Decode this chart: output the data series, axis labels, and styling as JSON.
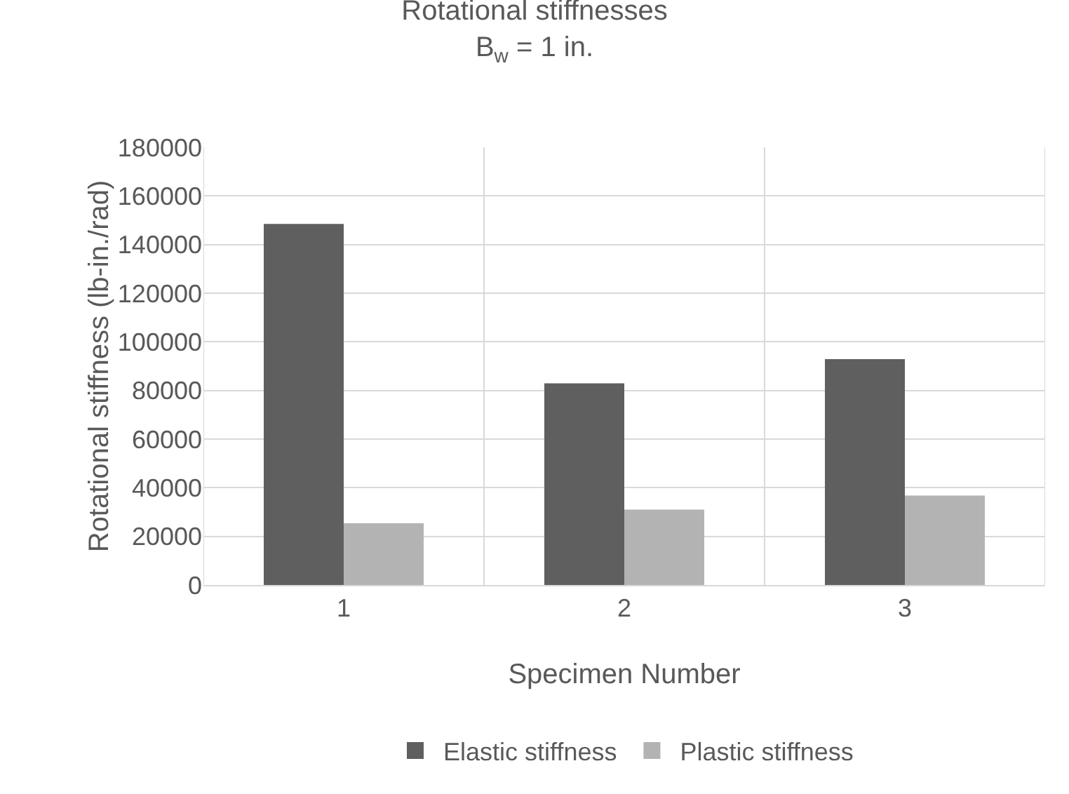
{
  "chart_data": {
    "type": "bar",
    "title": "Rotational stiffnesses",
    "subtitle": "B$_{w}$ = 1 in.",
    "xlabel": "Specimen Number",
    "ylabel": "Rotational stiffness (lb-in./rad)",
    "categories": [
      "1",
      "2",
      "3"
    ],
    "series": [
      {
        "name": "Elastic stiffness",
        "color": "#5f5f5f",
        "values": [
          148500,
          82900,
          92900
        ]
      },
      {
        "name": "Plastic stiffness",
        "color": "#b3b3b3",
        "values": [
          25400,
          31000,
          36800
        ]
      }
    ],
    "ylim": [
      0,
      180000
    ],
    "yticks": [
      0,
      20000,
      40000,
      60000,
      80000,
      100000,
      120000,
      140000,
      160000,
      180000
    ],
    "grid": true,
    "legend": "bottom"
  }
}
